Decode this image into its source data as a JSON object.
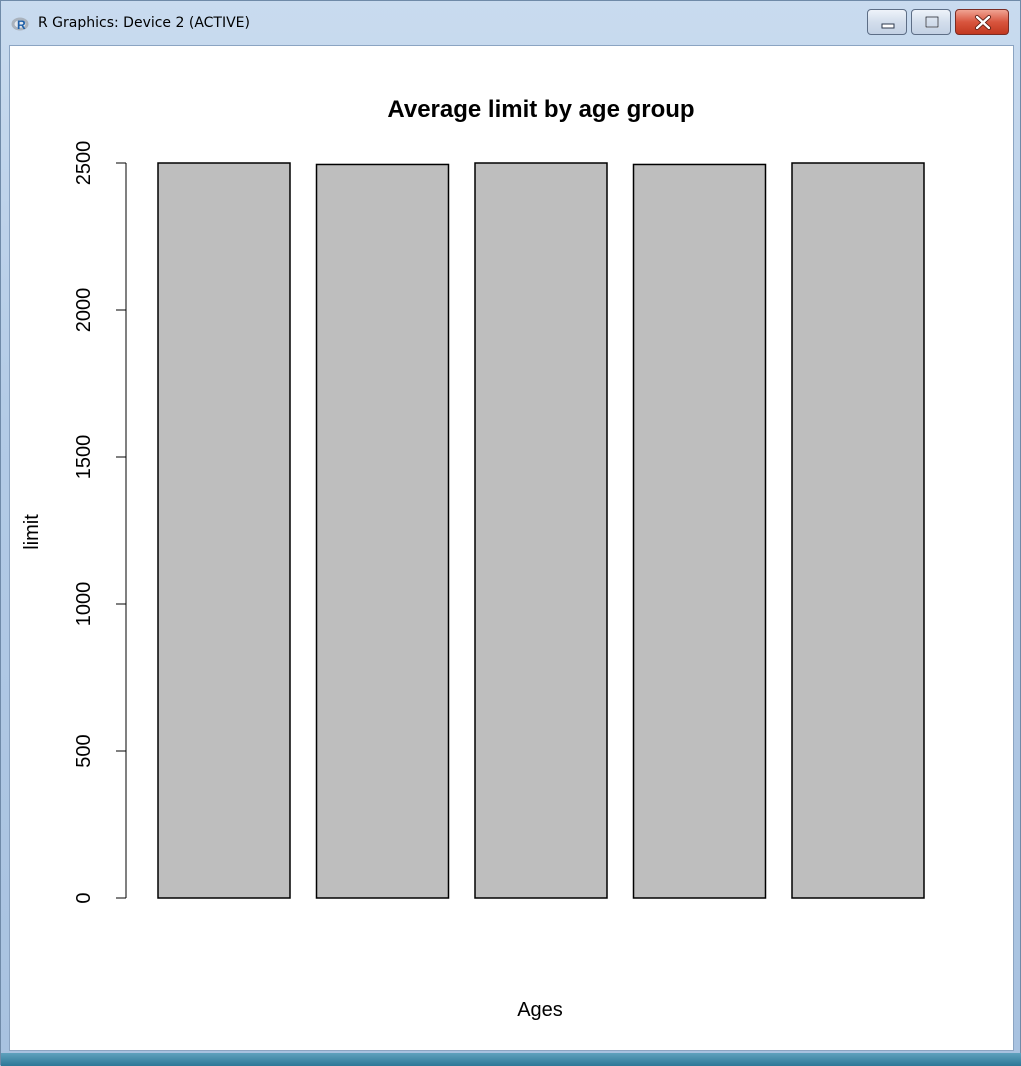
{
  "window": {
    "title": "R Graphics: Device 2 (ACTIVE)",
    "app_icon": "r-logo-icon",
    "controls": {
      "minimize": "minimize-icon",
      "maximize": "maximize-icon",
      "close": "close-icon"
    }
  },
  "chart_data": {
    "type": "bar",
    "title": "Average limit by age group",
    "xlabel": "Ages",
    "ylabel": "limit",
    "categories": [
      "",
      "",
      "",
      "",
      ""
    ],
    "values": [
      2500,
      2495,
      2500,
      2495,
      2500
    ],
    "ylim": [
      0,
      2500
    ],
    "yticks": [
      "0",
      "500",
      "1000",
      "1500",
      "2000",
      "2500"
    ],
    "bar_color": "#bebebe",
    "grid": false
  }
}
